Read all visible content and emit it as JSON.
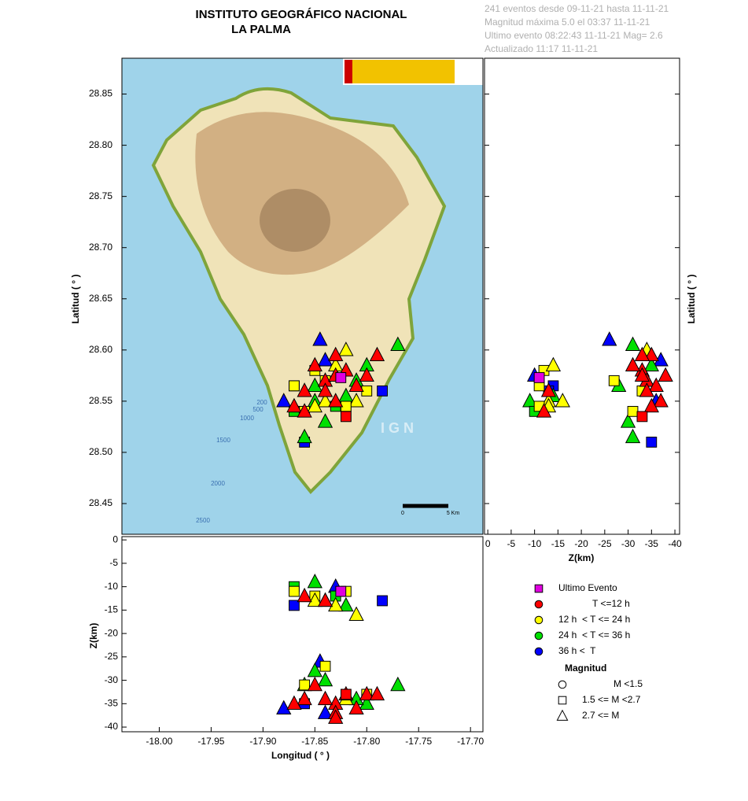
{
  "chart_data": {
    "type": "scatter",
    "title": "INSTITUTO GEOGRÁFICO NACIONAL",
    "subtitle": "LA PALMA",
    "info": [
      "241 eventos desde 09-11-21 hasta 11-11-21",
      "Magnitud máxima 5.0 el 03:37 11-11-21",
      "Ultimo evento   08:22:43 11-11-21   Mag= 2.6",
      "Actualizado    11:17  11-11-21"
    ],
    "xlabel": "Longitud ( ° )",
    "ylabel": "Latitud ( ° )",
    "zlabel": "Z(km)",
    "xlim": [
      -18.036,
      -17.688
    ],
    "ylim": [
      28.42,
      28.885
    ],
    "zlim": [
      0.7,
      -41.0
    ],
    "xticks": [
      {
        "value": -18.0,
        "label": "-18.00"
      },
      {
        "value": -17.95,
        "label": "-17.95"
      },
      {
        "value": -17.9,
        "label": "-17.90"
      },
      {
        "value": -17.85,
        "label": "-17.85"
      },
      {
        "value": -17.8,
        "label": "-17.80"
      },
      {
        "value": -17.75,
        "label": "-17.75"
      },
      {
        "value": -17.7,
        "label": "-17.70"
      }
    ],
    "yticks": [
      28.45,
      {
        "value": 28.5,
        "label": "28.50"
      },
      28.55,
      {
        "value": 28.6,
        "label": "28.60"
      },
      28.65,
      {
        "value": 28.7,
        "label": "28.70"
      },
      28.75,
      {
        "value": 28.8,
        "label": "28.80"
      },
      28.85
    ],
    "zticks": [
      0,
      -5,
      -10,
      -15,
      -20,
      -25,
      -30,
      -35,
      -40
    ],
    "series": [
      {
        "name": "36 h <  T",
        "color": "#0000ff",
        "legend_marker": "circle",
        "x": [
          -17.845,
          -17.87,
          -17.785,
          -17.86,
          -17.83,
          -17.88,
          -17.84
        ],
        "y": [
          28.61,
          28.565,
          28.56,
          28.51,
          28.575,
          28.55,
          28.59
        ],
        "z": [
          -26,
          -14,
          -13,
          -35,
          -10,
          -36,
          -37
        ],
        "shapes": [
          "triangle",
          "square",
          "square",
          "square",
          "triangle",
          "triangle",
          "triangle"
        ]
      },
      {
        "name": "24 h  < T <= 36 h",
        "color": "#00e000",
        "legend_marker": "circle",
        "x": [
          -17.85,
          -17.87,
          -17.84,
          -17.8,
          -17.77,
          -17.86,
          -17.83,
          -17.81,
          -17.85,
          -17.82
        ],
        "y": [
          28.55,
          28.54,
          28.53,
          28.585,
          28.605,
          28.515,
          28.545,
          28.57,
          28.565,
          28.555
        ],
        "z": [
          -9,
          -10,
          -30,
          -35,
          -31,
          -31,
          -12,
          -34,
          -28,
          -14
        ],
        "shapes": [
          "triangle",
          "square",
          "triangle",
          "triangle",
          "triangle",
          "triangle",
          "square",
          "triangle",
          "triangle",
          "triangle"
        ]
      },
      {
        "name": "12 h  < T <= 24 h",
        "color": "#ffff00",
        "legend_marker": "circle",
        "x": [
          -17.85,
          -17.83,
          -17.84,
          -17.87,
          -17.81,
          -17.82,
          -17.86,
          -17.84,
          -17.82,
          -17.85,
          -17.8
        ],
        "y": [
          28.58,
          28.585,
          28.55,
          28.565,
          28.55,
          28.545,
          28.54,
          28.57,
          28.6,
          28.545,
          28.56
        ],
        "z": [
          -12,
          -14,
          -13,
          -11,
          -16,
          -11,
          -31,
          -27,
          -34,
          -13,
          -33
        ],
        "shapes": [
          "square",
          "triangle",
          "triangle",
          "square",
          "triangle",
          "square",
          "square",
          "square",
          "triangle",
          "triangle",
          "square"
        ]
      },
      {
        "name": "T <=12 h",
        "color": "#ff0000",
        "legend_marker": "circle",
        "x": [
          -17.83,
          -17.82,
          -17.84,
          -17.81,
          -17.86,
          -17.83,
          -17.87,
          -17.8,
          -17.85,
          -17.82,
          -17.84,
          -17.83,
          -17.79,
          -17.86
        ],
        "y": [
          28.595,
          28.58,
          28.57,
          28.565,
          28.56,
          28.55,
          28.545,
          28.575,
          28.585,
          28.535,
          28.56,
          28.575,
          28.595,
          28.54
        ],
        "z": [
          -35,
          -33,
          -34,
          -36,
          -34,
          -37,
          -35,
          -33,
          -31,
          -33,
          -13,
          -38,
          -33,
          -12
        ],
        "shapes": [
          "triangle",
          "triangle",
          "triangle",
          "triangle",
          "triangle",
          "triangle",
          "triangle",
          "triangle",
          "triangle",
          "square",
          "triangle",
          "triangle",
          "triangle",
          "triangle"
        ]
      },
      {
        "name": "Ultimo Evento",
        "color": "#e000e0",
        "legend_marker": "square",
        "x": [
          -17.825
        ],
        "y": [
          28.573
        ],
        "z": [
          -11
        ],
        "shapes": [
          "square"
        ]
      }
    ],
    "legend_title": "Magnitud",
    "magnitude_legend": [
      {
        "label": "M <1.5",
        "shape": "circle"
      },
      {
        "label": "1.5 <= M <2.7",
        "shape": "square"
      },
      {
        "label": "2.7 <= M",
        "shape": "triangle"
      }
    ],
    "map_labels": [
      "200",
      "500",
      "1000",
      "1500",
      "2000",
      "2500"
    ],
    "scale_labels": [
      "0",
      "5 Km"
    ],
    "watermark": "I G N"
  }
}
